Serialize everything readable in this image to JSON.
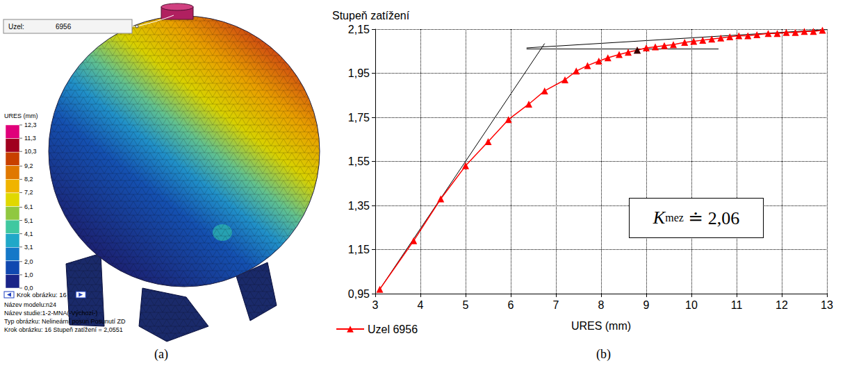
{
  "chart_data": {
    "type": "line",
    "y_label": "Stupeň zatížení",
    "x_label": "URES (mm)",
    "x": [
      3.1,
      3.85,
      4.45,
      5.0,
      5.5,
      5.95,
      6.4,
      6.75,
      7.2,
      7.45,
      7.7,
      7.95,
      8.15,
      8.4,
      8.6,
      8.8,
      9.0,
      9.2,
      9.4,
      9.6,
      9.85,
      10.05,
      10.25,
      10.45,
      10.65,
      10.85,
      11.05,
      11.25,
      11.45,
      11.7,
      11.9,
      12.1,
      12.3,
      12.5,
      12.7,
      12.9
    ],
    "series": [
      {
        "name": "Uzel 6956",
        "color": "#ff0000",
        "marker": "triangle",
        "values": [
          0.97,
          1.19,
          1.38,
          1.53,
          1.64,
          1.74,
          1.81,
          1.87,
          1.92,
          1.96,
          1.985,
          2.005,
          2.02,
          2.035,
          2.045,
          2.055,
          2.065,
          2.07,
          2.075,
          2.08,
          2.09,
          2.095,
          2.1,
          2.105,
          2.11,
          2.115,
          2.12,
          2.12,
          2.125,
          2.13,
          2.13,
          2.135,
          2.135,
          2.14,
          2.14,
          2.145
        ]
      }
    ],
    "highlight": {
      "x": 8.8,
      "y": 2.055,
      "color": "#000000",
      "marker": "triangle"
    },
    "guide_lines": [
      {
        "x": [
          3.1,
          6.75
        ],
        "y": [
          0.97,
          2.085
        ],
        "color": "#000000"
      },
      {
        "x": [
          6.35,
          10.6
        ],
        "y": [
          2.06,
          2.06
        ],
        "color": "#000000"
      },
      {
        "x": [
          6.35,
          13
        ],
        "y": [
          2.065,
          2.148
        ],
        "color": "#000000"
      }
    ],
    "annotation": {
      "symbol": "K",
      "subscript": "mez",
      "relation": "≐",
      "value": 2.06,
      "label": "2,06"
    },
    "xlim": [
      3,
      13
    ],
    "xticks": [
      3,
      4,
      5,
      6,
      7,
      8,
      9,
      10,
      11,
      12,
      13
    ],
    "ylim": [
      0.95,
      2.15
    ],
    "yticks": [
      {
        "value": 0.95,
        "label": "0,95"
      },
      {
        "value": 1.15,
        "label": "1,15"
      },
      {
        "value": 1.35,
        "label": "1,35"
      },
      {
        "value": 1.55,
        "label": "1,55"
      },
      {
        "value": 1.75,
        "label": "1,75"
      },
      {
        "value": 1.95,
        "label": "1,95"
      },
      {
        "value": 2.15,
        "label": "2,15"
      }
    ],
    "grid": true,
    "legend": "bottom left",
    "panel_label": "(b)"
  },
  "figure_a": {
    "node_box": {
      "label": "Uzel:",
      "value": "6956"
    },
    "colorbar": {
      "title": "URES (mm)",
      "ticks": [
        {
          "value": 12.3,
          "label": "12,3"
        },
        {
          "value": 11.3,
          "label": "11,3"
        },
        {
          "value": 10.3,
          "label": "10,3"
        },
        {
          "value": 9.2,
          "label": "9,2"
        },
        {
          "value": 8.2,
          "label": "8,2"
        },
        {
          "value": 7.2,
          "label": "7,2"
        },
        {
          "value": 6.1,
          "label": "6,1"
        },
        {
          "value": 5.1,
          "label": "5,1"
        },
        {
          "value": 4.1,
          "label": "4,1"
        },
        {
          "value": 3.1,
          "label": "3,1"
        },
        {
          "value": 2.0,
          "label": "2,0"
        },
        {
          "value": 1.0,
          "label": "1,0"
        },
        {
          "value": 0.0,
          "label": "0,0"
        }
      ],
      "colors": [
        "#e0007a",
        "#a0001e",
        "#c84000",
        "#e07800",
        "#f0b400",
        "#e0d800",
        "#90c840",
        "#40c8a0",
        "#20a8c8",
        "#1478c8",
        "#1048b0",
        "#1a2488"
      ]
    },
    "step_control": "Krok obrázku: 16",
    "info": [
      "Název modelu:n24",
      "Název studie:1-2-MNA(-Výchozí-)",
      "Typ obrázku: Nelineární posun Posunutí ZD",
      "Krok obrázku: 16  Stupeň zatížení = 2,0551"
    ],
    "panel_label": "(a)"
  }
}
